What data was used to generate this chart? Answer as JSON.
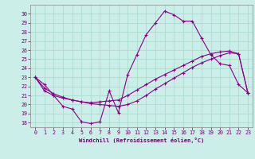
{
  "xlabel": "Windchill (Refroidissement éolien,°C)",
  "bg_color": "#cceee8",
  "grid_color": "#aaddcc",
  "line_color": "#880088",
  "xlim": [
    -0.5,
    23.5
  ],
  "ylim": [
    17.5,
    31.0
  ],
  "yticks": [
    18,
    19,
    20,
    21,
    22,
    23,
    24,
    25,
    26,
    27,
    28,
    29,
    30
  ],
  "xticks": [
    0,
    1,
    2,
    3,
    4,
    5,
    6,
    7,
    8,
    9,
    10,
    11,
    12,
    13,
    14,
    15,
    16,
    17,
    18,
    19,
    20,
    21,
    22,
    23
  ],
  "s1_x": [
    0,
    1,
    2,
    3,
    4,
    5,
    6,
    7,
    8,
    9,
    10,
    11,
    12,
    13,
    14,
    15,
    16,
    17,
    18,
    19,
    20,
    21,
    22,
    23
  ],
  "s1_y": [
    23.0,
    22.2,
    21.0,
    19.8,
    19.5,
    18.1,
    17.9,
    18.1,
    21.5,
    19.1,
    23.3,
    25.5,
    27.7,
    29.0,
    30.3,
    29.9,
    29.2,
    29.2,
    27.3,
    25.5,
    24.5,
    24.3,
    22.2,
    21.3
  ],
  "s2_x": [
    0,
    1,
    2,
    3,
    4,
    5,
    6,
    7,
    8,
    9,
    10,
    11,
    12,
    13,
    14,
    15,
    16,
    17,
    18,
    19,
    20,
    21,
    22,
    23
  ],
  "s2_y": [
    23.0,
    21.8,
    21.2,
    20.8,
    20.5,
    20.3,
    20.2,
    20.3,
    20.4,
    20.5,
    21.0,
    21.6,
    22.2,
    22.8,
    23.3,
    23.8,
    24.3,
    24.8,
    25.3,
    25.6,
    25.8,
    25.9,
    25.6,
    21.3
  ],
  "s3_x": [
    0,
    1,
    2,
    3,
    4,
    5,
    6,
    7,
    8,
    9,
    10,
    11,
    12,
    13,
    14,
    15,
    16,
    17,
    18,
    19,
    20,
    21,
    22,
    23
  ],
  "s3_y": [
    23.0,
    21.5,
    21.0,
    20.7,
    20.5,
    20.3,
    20.1,
    20.0,
    19.9,
    19.8,
    20.0,
    20.4,
    21.0,
    21.7,
    22.3,
    22.9,
    23.5,
    24.1,
    24.6,
    25.0,
    25.4,
    25.7,
    25.6,
    21.3
  ]
}
